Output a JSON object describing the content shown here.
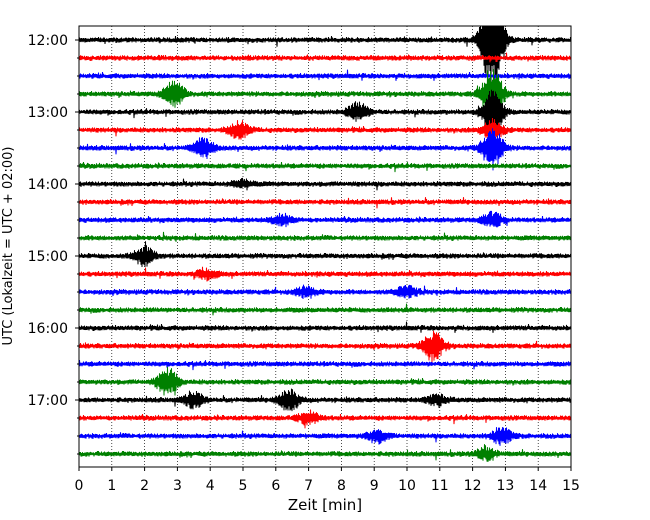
{
  "chart_data": {
    "type": "line",
    "title": "",
    "xlabel": "Zeit  [min]",
    "ylabel": "UTC (Lokalzeit = UTC + 02:00)",
    "xlim": [
      0,
      15
    ],
    "x_ticks": [
      "0",
      "1",
      "2",
      "3",
      "4",
      "5",
      "6",
      "7",
      "8",
      "9",
      "10",
      "11",
      "12",
      "13",
      "14",
      "15"
    ],
    "y_ticks": [
      "12:00",
      "13:00",
      "14:00",
      "15:00",
      "16:00",
      "17:00"
    ],
    "grid": "vertical dotted",
    "trace_interval_min": 15,
    "trace_start": "12:00",
    "trace_end": "17:45",
    "color_cycle": [
      "#000000",
      "#ff0000",
      "#0000ff",
      "#008000"
    ],
    "events": [
      {
        "trace": 0,
        "x": 12.6,
        "amp": 55
      },
      {
        "trace": 3,
        "x": 2.9,
        "amp": 12
      },
      {
        "trace": 3,
        "x": 12.6,
        "amp": 28
      },
      {
        "trace": 4,
        "x": 8.5,
        "amp": 9
      },
      {
        "trace": 4,
        "x": 12.6,
        "amp": 22
      },
      {
        "trace": 5,
        "x": 4.9,
        "amp": 8
      },
      {
        "trace": 5,
        "x": 12.6,
        "amp": 10
      },
      {
        "trace": 6,
        "x": 3.8,
        "amp": 9
      },
      {
        "trace": 6,
        "x": 12.6,
        "amp": 20
      },
      {
        "trace": 8,
        "x": 5.0,
        "amp": 4
      },
      {
        "trace": 10,
        "x": 6.2,
        "amp": 5
      },
      {
        "trace": 10,
        "x": 12.6,
        "amp": 7
      },
      {
        "trace": 12,
        "x": 2.0,
        "amp": 9
      },
      {
        "trace": 13,
        "x": 3.9,
        "amp": 5
      },
      {
        "trace": 14,
        "x": 6.9,
        "amp": 5
      },
      {
        "trace": 14,
        "x": 10.0,
        "amp": 6
      },
      {
        "trace": 17,
        "x": 10.8,
        "amp": 14
      },
      {
        "trace": 19,
        "x": 2.7,
        "amp": 13
      },
      {
        "trace": 20,
        "x": 3.5,
        "amp": 7
      },
      {
        "trace": 20,
        "x": 6.4,
        "amp": 10
      },
      {
        "trace": 20,
        "x": 10.9,
        "amp": 5
      },
      {
        "trace": 21,
        "x": 7.0,
        "amp": 6
      },
      {
        "trace": 22,
        "x": 9.1,
        "amp": 6
      },
      {
        "trace": 22,
        "x": 12.9,
        "amp": 8
      },
      {
        "trace": 23,
        "x": 12.4,
        "amp": 6
      }
    ]
  }
}
